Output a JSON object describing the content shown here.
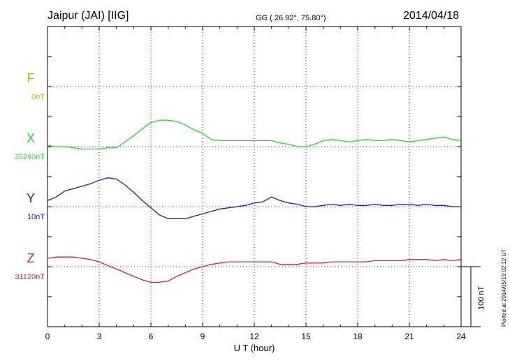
{
  "header": {
    "station": "Jaipur (JAI)  [IIG]",
    "coords": "GG ( 26.92°,  75.80°)",
    "date": "2014/04/18"
  },
  "footer_note": "Plotted at 2014/05/19 02:12 UT",
  "chart_data": {
    "type": "line",
    "xlabel": "U T (hour)",
    "xlim": [
      0,
      24
    ],
    "x_ticks": [
      0,
      3,
      6,
      9,
      12,
      15,
      18,
      21,
      24
    ],
    "x_tick_labels": [
      "0",
      "3",
      "6",
      "9",
      "12",
      "15",
      "18",
      "21",
      "24"
    ],
    "y_unit_per_div": 50,
    "scale_bar_label": "100 nT",
    "grid": true,
    "series": [
      {
        "name": "F",
        "baseline_label": "0nT",
        "color": "#f0a000",
        "x": [],
        "y": []
      },
      {
        "name": "X",
        "baseline_label": "35240nT",
        "color": "#22dd22",
        "x": [
          0,
          0.5,
          1,
          1.5,
          2,
          2.5,
          3,
          3.5,
          4,
          4.5,
          5,
          5.5,
          6,
          6.5,
          7,
          7.5,
          8,
          8.5,
          9,
          9.5,
          10,
          10.5,
          11,
          11.5,
          12,
          12.5,
          13,
          13.5,
          14,
          14.5,
          15,
          15.5,
          16,
          16.5,
          17,
          17.5,
          18,
          18.5,
          19,
          19.5,
          20,
          20.5,
          21,
          21.5,
          22,
          22.5,
          23,
          23.5,
          24
        ],
        "y": [
          1,
          0,
          0,
          -1,
          -2,
          -2,
          -2,
          -1,
          -1,
          4,
          9,
          15,
          20,
          22,
          22,
          21,
          18,
          14,
          11,
          6,
          5,
          5,
          5,
          5,
          5,
          5,
          5,
          3,
          2,
          0,
          0,
          2,
          5,
          6,
          5,
          4,
          5,
          6,
          5,
          5,
          6,
          5,
          4,
          5,
          6,
          7,
          8,
          6,
          5
        ]
      },
      {
        "name": "Y",
        "baseline_label": "10nT",
        "color": "#1a1acc",
        "x": [
          0,
          0.5,
          1,
          1.5,
          2,
          2.5,
          3,
          3.5,
          4,
          4.5,
          5,
          5.5,
          6,
          6.5,
          7,
          7.5,
          8,
          8.5,
          9,
          9.5,
          10,
          10.5,
          11,
          11.5,
          12,
          12.5,
          13,
          13.5,
          14,
          14.5,
          15,
          15.5,
          16,
          16.5,
          17,
          17.5,
          18,
          18.5,
          19,
          19.5,
          20,
          20.5,
          21,
          21.5,
          22,
          22.5,
          23,
          23.5,
          24
        ],
        "y": [
          5,
          8,
          13,
          15,
          17,
          19,
          22,
          24,
          23,
          18,
          12,
          5,
          -1,
          -7,
          -10,
          -10,
          -10,
          -8,
          -6,
          -4,
          -2,
          -1,
          0,
          1,
          3,
          4,
          8,
          5,
          3,
          2,
          0,
          0,
          1,
          2,
          1,
          2,
          1,
          1,
          2,
          1,
          1,
          2,
          2,
          1,
          2,
          1,
          1,
          0,
          0
        ]
      },
      {
        "name": "Z",
        "baseline_label": "31120nT",
        "color": "#dd2222",
        "x": [
          0,
          0.5,
          1,
          1.5,
          2,
          2.5,
          3,
          3.5,
          4,
          4.5,
          5,
          5.5,
          6,
          6.5,
          7,
          7.5,
          8,
          8.5,
          9,
          9.5,
          10,
          10.5,
          11,
          11.5,
          12,
          12.5,
          13,
          13.5,
          14,
          14.5,
          15,
          15.5,
          16,
          16.5,
          17,
          17.5,
          18,
          18.5,
          19,
          19.5,
          20,
          20.5,
          21,
          21.5,
          22,
          22.5,
          23,
          23.5,
          24
        ],
        "y": [
          7,
          8,
          8,
          8,
          7,
          6,
          4,
          1,
          -2,
          -5,
          -8,
          -11,
          -13,
          -13,
          -12,
          -8,
          -5,
          -2,
          0,
          2,
          3,
          4,
          4,
          4,
          4,
          4,
          4,
          2,
          2,
          2,
          3,
          3,
          3,
          4,
          4,
          4,
          4,
          4,
          5,
          5,
          5,
          5,
          6,
          6,
          6,
          5,
          6,
          5,
          6
        ]
      }
    ]
  }
}
